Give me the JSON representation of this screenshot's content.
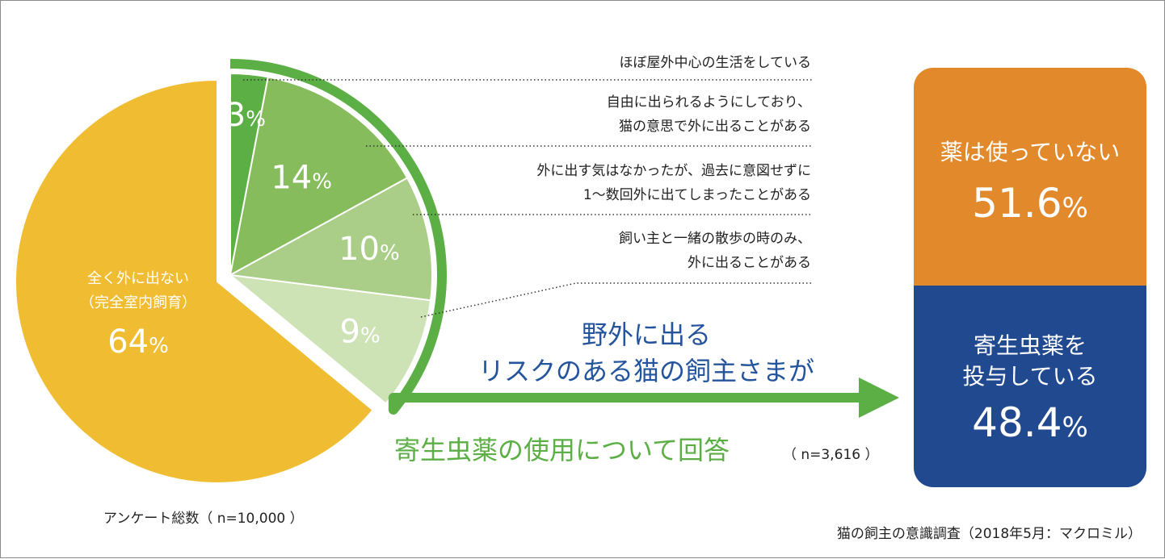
{
  "colors": {
    "yellow": "#F0BD32",
    "green_dark": "#5BAF45",
    "green_2": "#86BC5C",
    "green_3": "#AACD88",
    "green_4": "#CDE2B5",
    "arrow_green": "#5BAF45",
    "text_blue": "#24549C",
    "text_green": "#5BAF45",
    "card_orange": "#E2892B",
    "card_blue": "#21498F"
  },
  "chart_data": [
    {
      "type": "pie",
      "categories": [
        "ほぼ屋外中心の生活をしている",
        "自由に出られるようにしており、猫の意思で外に出ることがある",
        "外に出す気はなかったが、過去に意図せずに1〜数回外に出てしまったことがある",
        "飼い主と一緒の散歩の時のみ、外に出ることがある",
        "全く外に出ない（完全室内飼育）"
      ],
      "values": [
        3,
        14,
        10,
        9,
        64
      ],
      "value_labels": [
        "3",
        "14",
        "10",
        "9",
        "64"
      ],
      "unit": "%",
      "slice_colors": [
        "green_dark",
        "green_2",
        "green_3",
        "green_4",
        "yellow"
      ],
      "exploded": [
        true,
        true,
        true,
        true,
        false
      ],
      "inner_labels": {
        "main_line1": "全く外に出ない",
        "main_line2": "（完全室内飼育）"
      },
      "category_lines": [
        [
          "ほぼ屋外中心の生活をしている"
        ],
        [
          "自由に出られるようにしており、",
          "猫の意思で外に出ることがある"
        ],
        [
          "外に出す気はなかったが、過去に意図せずに",
          "1〜数回外に出てしまったことがある"
        ],
        [
          "飼い主と一緒の散歩の時のみ、",
          "外に出ることがある"
        ]
      ],
      "n_label": "アンケート総数（ n=10,000 ）"
    },
    {
      "type": "bar",
      "stacked": true,
      "categories": [
        "薬は使っていない",
        "寄生虫薬を投与している"
      ],
      "values": [
        51.6,
        48.4
      ],
      "unit": "%",
      "colors": [
        "card_orange",
        "card_blue"
      ]
    }
  ],
  "annotations": {
    "arrow_line1": "野外に出る",
    "arrow_line2": "リスクのある猫の飼主さまが",
    "answer_title": "寄生虫薬の使用について回答",
    "answer_n": "（ n=3,616 ）"
  },
  "cards": {
    "orange_label": "薬は使っていない",
    "orange_value": "51.6",
    "blue_label_line1": "寄生虫薬を",
    "blue_label_line2": "投与している",
    "blue_value": "48.4",
    "unit": "%"
  },
  "source": "猫の飼主の意識調査（2018年5月：マクロミル）"
}
